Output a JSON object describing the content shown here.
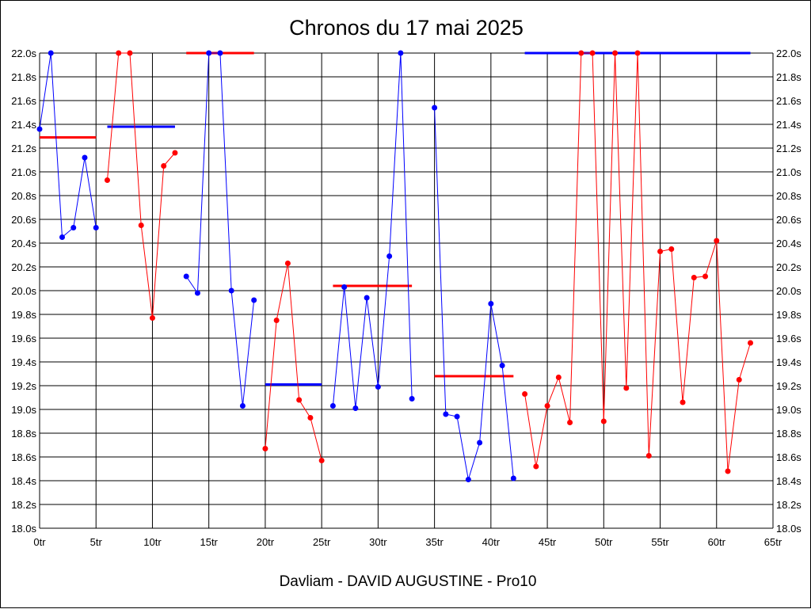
{
  "chart_data": {
    "type": "line",
    "title": "Chronos du 17 mai 2025",
    "subtitle": "Davliam - DAVID AUGUSTINE - Pro10",
    "x_ticks": [
      "0tr",
      "5tr",
      "10tr",
      "15tr",
      "20tr",
      "25tr",
      "30tr",
      "35tr",
      "40tr",
      "45tr",
      "50tr",
      "55tr",
      "60tr",
      "65tr"
    ],
    "y_ticks": [
      "18.0s",
      "18.2s",
      "18.4s",
      "18.6s",
      "18.8s",
      "19.0s",
      "19.2s",
      "19.4s",
      "19.6s",
      "19.8s",
      "20.0s",
      "20.2s",
      "20.4s",
      "20.6s",
      "20.8s",
      "21.0s",
      "21.2s",
      "21.4s",
      "21.6s",
      "21.8s",
      "22.0s"
    ],
    "xlim": [
      0,
      65
    ],
    "ylim": [
      18.0,
      22.0
    ],
    "grid": true,
    "colors": {
      "blue": "#0000ff",
      "red": "#ff0000",
      "grid": "#000000"
    },
    "series": [
      {
        "color": "blue",
        "x": [
          0,
          1,
          2,
          3,
          4,
          5
        ],
        "values": [
          21.36,
          22.0,
          20.45,
          20.53,
          21.12,
          20.53
        ]
      },
      {
        "color": "red",
        "x": [
          6,
          7,
          8,
          9,
          10,
          11,
          12
        ],
        "values": [
          20.93,
          22.0,
          22.0,
          20.55,
          19.77,
          21.05,
          21.16
        ]
      },
      {
        "color": "blue",
        "x": [
          13,
          14,
          15,
          16,
          17,
          18,
          19
        ],
        "values": [
          20.12,
          19.98,
          22.0,
          22.0,
          20.0,
          19.03,
          19.92
        ]
      },
      {
        "color": "red",
        "x": [
          20,
          21,
          22,
          23,
          24,
          25
        ],
        "values": [
          18.67,
          19.75,
          20.23,
          19.08,
          18.93,
          18.57
        ]
      },
      {
        "color": "blue",
        "x": [
          26,
          27,
          28,
          29,
          30,
          31,
          32,
          33
        ],
        "values": [
          19.03,
          20.03,
          19.01,
          19.94,
          19.19,
          20.29,
          22.0,
          19.09
        ]
      },
      {
        "color": "blue",
        "x": [
          35,
          36,
          37,
          38,
          39,
          40,
          41,
          42
        ],
        "values": [
          21.54,
          18.96,
          18.94,
          18.41,
          18.72,
          19.89,
          19.37,
          18.42
        ]
      },
      {
        "color": "red",
        "x": [
          43,
          44,
          45,
          46,
          47,
          48,
          49,
          50,
          51,
          52,
          53,
          54,
          55,
          56,
          57,
          58,
          59,
          60,
          61,
          62,
          63
        ],
        "values": [
          19.13,
          18.52,
          19.03,
          19.27,
          18.89,
          22.0,
          22.0,
          18.9,
          22.0,
          19.18,
          22.0,
          18.61,
          20.33,
          20.35,
          19.06,
          20.11,
          20.12,
          20.42,
          18.48,
          19.25,
          19.56
        ]
      }
    ],
    "averages": [
      {
        "color": "red",
        "x_start": 0,
        "x_end": 5,
        "value": 21.29
      },
      {
        "color": "blue",
        "x_start": 6,
        "x_end": 12,
        "value": 21.38
      },
      {
        "color": "red",
        "x_start": 13,
        "x_end": 19,
        "value": 22.0
      },
      {
        "color": "blue",
        "x_start": 20,
        "x_end": 25,
        "value": 19.21
      },
      {
        "color": "red",
        "x_start": 26,
        "x_end": 33,
        "value": 20.04
      },
      {
        "color": "red",
        "x_start": 35,
        "x_end": 42,
        "value": 19.28
      },
      {
        "color": "blue",
        "x_start": 43,
        "x_end": 63,
        "value": 22.0
      }
    ]
  }
}
